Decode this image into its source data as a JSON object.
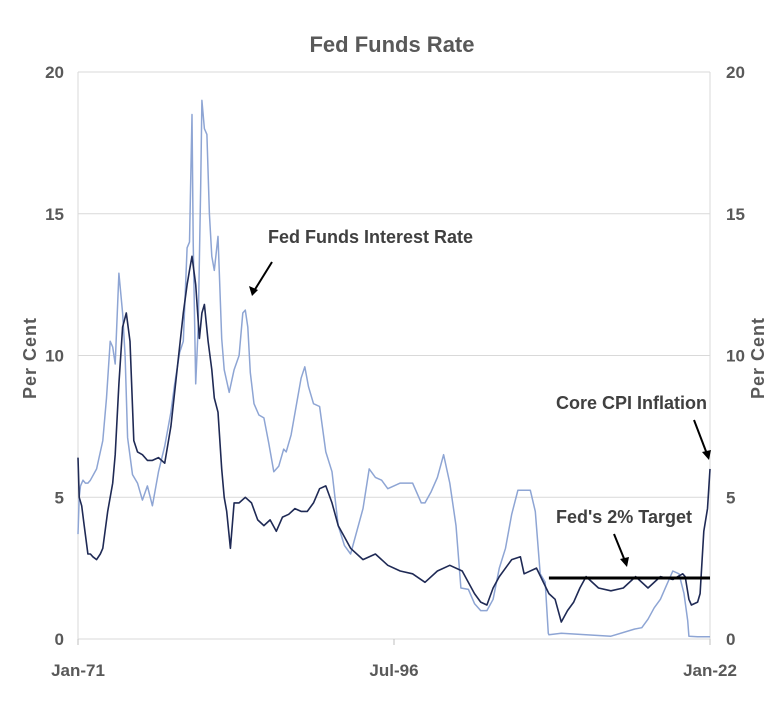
{
  "chart_data": {
    "type": "line",
    "title": "Fed Funds Rate",
    "ylabel_left": "Per  Cent",
    "ylabel_right": "Per  Cent",
    "xlim": [
      1971.0,
      2022.0
    ],
    "ylim": [
      0,
      20
    ],
    "yticks": [
      0,
      5,
      10,
      15,
      20
    ],
    "xticks": [
      {
        "value": 1971.0,
        "label": "Jan-71"
      },
      {
        "value": 1996.5,
        "label": "Jul-96"
      },
      {
        "value": 2022.0,
        "label": "Jan-22"
      }
    ],
    "grid": "horizontal",
    "series": [
      {
        "name": "Fed Funds Interest Rate",
        "color": "#8ea5d4",
        "x": [
          1971.0,
          1971.1,
          1971.2,
          1971.4,
          1971.6,
          1971.8,
          1972.0,
          1972.5,
          1973.0,
          1973.3,
          1973.6,
          1973.8,
          1974.0,
          1974.3,
          1974.6,
          1974.8,
          1975.0,
          1975.4,
          1975.8,
          1976.2,
          1976.6,
          1977.0,
          1977.5,
          1978.0,
          1978.5,
          1978.8,
          1979.2,
          1979.5,
          1979.8,
          1980.0,
          1980.2,
          1980.3,
          1980.5,
          1980.7,
          1980.9,
          1981.0,
          1981.2,
          1981.4,
          1981.6,
          1981.8,
          1982.0,
          1982.3,
          1982.6,
          1982.8,
          1983.2,
          1983.6,
          1984.0,
          1984.3,
          1984.5,
          1984.7,
          1984.9,
          1985.2,
          1985.6,
          1986.0,
          1986.4,
          1986.8,
          1987.2,
          1987.6,
          1987.8,
          1988.2,
          1988.6,
          1989.0,
          1989.3,
          1989.6,
          1990.0,
          1990.5,
          1991.0,
          1991.5,
          1992.0,
          1992.5,
          1993.0,
          1994.0,
          1994.5,
          1995.0,
          1995.5,
          1996.0,
          1997.0,
          1998.0,
          1998.7,
          1999.0,
          1999.5,
          2000.0,
          2000.5,
          2001.0,
          2001.5,
          2001.9,
          2002.5,
          2003.0,
          2003.5,
          2004.0,
          2004.5,
          2005.0,
          2005.5,
          2006.0,
          2006.5,
          2007.0,
          2007.5,
          2007.9,
          2008.3,
          2008.7,
          2008.95,
          2009.0,
          2010.0,
          2012.0,
          2014.0,
          2015.9,
          2016.5,
          2017.0,
          2017.5,
          2018.0,
          2018.5,
          2019.0,
          2019.5,
          2019.9,
          2020.2,
          2020.3,
          2021.0,
          2022.0
        ],
        "y": [
          3.7,
          5.0,
          5.4,
          5.6,
          5.5,
          5.5,
          5.6,
          6.0,
          7.0,
          8.5,
          10.5,
          10.3,
          9.7,
          12.9,
          11.5,
          10.0,
          7.1,
          5.8,
          5.5,
          4.9,
          5.4,
          4.7,
          5.9,
          6.8,
          8.0,
          9.0,
          10.1,
          10.5,
          13.8,
          14.0,
          18.5,
          14.0,
          9.0,
          11.0,
          16.0,
          19.0,
          18.0,
          17.8,
          15.0,
          13.5,
          13.0,
          14.2,
          10.6,
          9.5,
          8.7,
          9.5,
          10.0,
          11.5,
          11.6,
          11.0,
          9.4,
          8.3,
          7.9,
          7.8,
          6.9,
          5.9,
          6.1,
          6.7,
          6.6,
          7.2,
          8.2,
          9.2,
          9.6,
          8.9,
          8.3,
          8.2,
          6.6,
          5.9,
          4.0,
          3.3,
          3.0,
          4.6,
          6.0,
          5.7,
          5.6,
          5.3,
          5.5,
          5.5,
          4.8,
          4.8,
          5.2,
          5.7,
          6.5,
          5.5,
          4.0,
          1.8,
          1.75,
          1.25,
          1.0,
          1.0,
          1.4,
          2.5,
          3.2,
          4.4,
          5.25,
          5.25,
          5.25,
          4.5,
          2.3,
          2.0,
          0.2,
          0.15,
          0.2,
          0.15,
          0.1,
          0.35,
          0.4,
          0.7,
          1.1,
          1.4,
          1.9,
          2.4,
          2.3,
          1.6,
          0.65,
          0.1,
          0.08,
          0.08
        ]
      },
      {
        "name": "Core CPI Inflation",
        "color": "#1f2a55",
        "x": [
          1971.0,
          1971.1,
          1971.3,
          1971.5,
          1971.8,
          1972.0,
          1972.2,
          1972.5,
          1972.8,
          1973.0,
          1973.4,
          1973.8,
          1974.0,
          1974.3,
          1974.6,
          1974.9,
          1975.2,
          1975.5,
          1975.8,
          1976.2,
          1976.6,
          1977.0,
          1977.5,
          1978.0,
          1978.5,
          1979.0,
          1979.5,
          1979.8,
          1980.0,
          1980.2,
          1980.5,
          1980.8,
          1981.0,
          1981.2,
          1981.5,
          1981.8,
          1982.0,
          1982.3,
          1982.6,
          1982.8,
          1983.0,
          1983.3,
          1983.6,
          1984.0,
          1984.5,
          1985.0,
          1985.5,
          1986.0,
          1986.5,
          1987.0,
          1987.5,
          1988.0,
          1988.5,
          1989.0,
          1989.5,
          1990.0,
          1990.5,
          1991.0,
          1991.5,
          1992.0,
          1992.5,
          1993.0,
          1994.0,
          1995.0,
          1996.0,
          1997.0,
          1998.0,
          1999.0,
          2000.0,
          2001.0,
          2002.0,
          2003.0,
          2003.5,
          2004.0,
          2004.5,
          2005.0,
          2006.0,
          2006.7,
          2007.0,
          2008.0,
          2009.0,
          2009.5,
          2010.0,
          2010.5,
          2011.0,
          2011.5,
          2012.0,
          2013.0,
          2014.0,
          2015.0,
          2016.0,
          2017.0,
          2018.0,
          2019.0,
          2019.8,
          2020.0,
          2020.3,
          2020.5,
          2021.0,
          2021.2,
          2021.5,
          2021.8,
          2022.0
        ],
        "y": [
          6.4,
          5.0,
          4.7,
          4.0,
          3.0,
          3.0,
          2.9,
          2.8,
          3.0,
          3.2,
          4.5,
          5.5,
          6.5,
          9.0,
          11.0,
          11.5,
          10.5,
          7.0,
          6.6,
          6.5,
          6.3,
          6.3,
          6.4,
          6.2,
          7.5,
          9.5,
          11.5,
          12.5,
          13.0,
          13.5,
          12.5,
          10.6,
          11.5,
          11.8,
          10.5,
          9.5,
          8.5,
          8.0,
          6.0,
          5.0,
          4.5,
          3.2,
          4.8,
          4.8,
          5.0,
          4.8,
          4.2,
          4.0,
          4.2,
          3.8,
          4.3,
          4.4,
          4.6,
          4.5,
          4.5,
          4.8,
          5.3,
          5.4,
          4.8,
          4.0,
          3.6,
          3.2,
          2.8,
          3.0,
          2.6,
          2.4,
          2.3,
          2.0,
          2.4,
          2.6,
          2.4,
          1.6,
          1.3,
          1.2,
          1.8,
          2.2,
          2.8,
          2.9,
          2.3,
          2.5,
          1.6,
          1.4,
          0.6,
          1.0,
          1.3,
          1.8,
          2.2,
          1.8,
          1.7,
          1.8,
          2.2,
          1.8,
          2.2,
          2.1,
          2.3,
          2.2,
          1.4,
          1.2,
          1.3,
          1.6,
          3.8,
          4.6,
          6.0
        ]
      },
      {
        "name": "Fed's 2% Target",
        "color": "#000000",
        "x": [
          2009.0,
          2022.0
        ],
        "y": [
          2.15,
          2.15
        ]
      }
    ],
    "annotations": [
      {
        "text": "Fed Funds Interest Rate",
        "points_to_series": "Fed Funds Interest Rate"
      },
      {
        "text": "Core CPI Inflation",
        "points_to_series": "Core CPI Inflation"
      },
      {
        "text": "Fed's 2% Target",
        "points_to_series": "Fed's 2% Target"
      }
    ],
    "legend": "none"
  }
}
